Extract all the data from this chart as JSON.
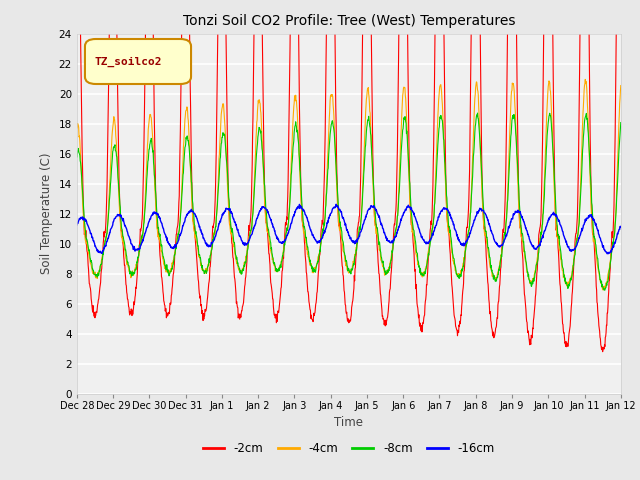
{
  "title": "Tonzi Soil CO2 Profile: Tree (West) Temperatures",
  "xlabel": "Time",
  "ylabel": "Soil Temperature (C)",
  "ylim": [
    0,
    24
  ],
  "yticks": [
    0,
    2,
    4,
    6,
    8,
    10,
    12,
    14,
    16,
    18,
    20,
    22,
    24
  ],
  "legend_label": "TZ_soilco2",
  "line_labels": [
    "-2cm",
    "-4cm",
    "-8cm",
    "-16cm"
  ],
  "line_colors": [
    "#ff0000",
    "#ffaa00",
    "#00cc00",
    "#0000ff"
  ],
  "xtick_labels": [
    "Dec 28",
    "Dec 29",
    "Dec 30",
    "Dec 31",
    "Jan 1",
    "Jan 2",
    "Jan 3",
    "Jan 4",
    "Jan 5",
    "Jan 6",
    "Jan 7",
    "Jan 8",
    "Jan 9",
    "Jan 10",
    "Jan 11",
    "Jan 12"
  ],
  "fig_bg_color": "#e8e8e8",
  "plot_bg_color": "#f0f0f0",
  "grid_color": "#ffffff",
  "n_points": 1440,
  "duration_days": 15
}
